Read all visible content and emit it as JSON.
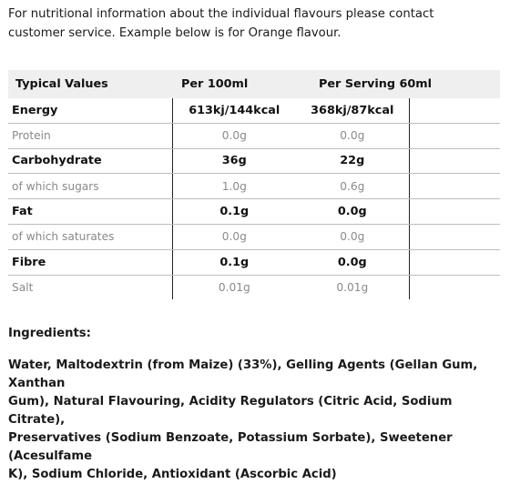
{
  "intro": {
    "line1": "For nutritional information about the individual flavours please contact",
    "line2": "customer service. Example below is for Orange flavour."
  },
  "table": {
    "headers": [
      "Typical Values",
      "Per 100ml",
      "Per Serving 60ml"
    ],
    "rows": [
      {
        "label": "Energy",
        "per100": "613kj/144kcal",
        "perServing": "368kj/87kcal"
      },
      {
        "label": "Protein",
        "per100": "0.0g",
        "perServing": "0.0g"
      },
      {
        "label": "Carbohydrate",
        "per100": "36g",
        "perServing": "22g"
      },
      {
        "label": "of which sugars",
        "per100": "1.0g",
        "perServing": "0.6g"
      },
      {
        "label": "Fat",
        "per100": "0.1g",
        "perServing": "0.0g"
      },
      {
        "label": "of which saturates",
        "per100": "0.0g",
        "perServing": "0.0g"
      },
      {
        "label": "Fibre",
        "per100": "0.1g",
        "perServing": "0.0g"
      },
      {
        "label": "Salt",
        "per100": "0.01g",
        "perServing": "0.01g"
      }
    ]
  },
  "ingredients": {
    "heading": "Ingredients:",
    "line1": "Water, Maltodextrin (from Maize) (33%), Gelling Agents (Gellan Gum, Xanthan",
    "line2": "Gum), Natural Flavouring, Acidity Regulators (Citric Acid, Sodium Citrate),",
    "line3": "Preservatives (Sodium Benzoate, Potassium Sorbate), Sweetener (Acesulfame",
    "line4": "K), Sodium Chloride, Antioxidant (Ascorbic Acid)"
  }
}
